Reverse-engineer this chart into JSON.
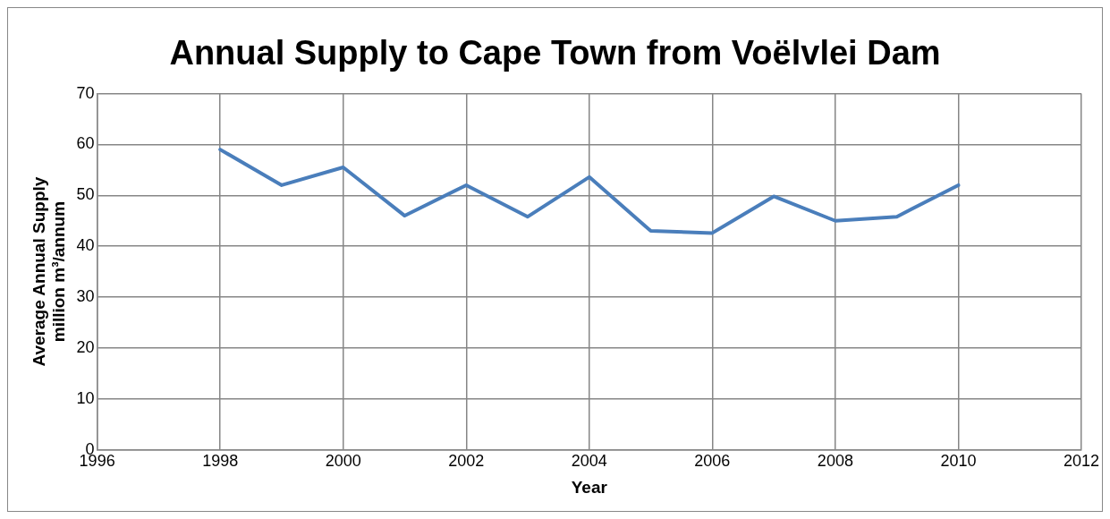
{
  "chart_data": {
    "type": "line",
    "title": "Annual Supply to Cape Town from Voëlvlei Dam",
    "xlabel": "Year",
    "ylabel": "Average Annual Supply\nmillion m³/annum",
    "x": [
      1998,
      1999,
      2000,
      2001,
      2002,
      2003,
      2004,
      2005,
      2006,
      2007,
      2008,
      2009,
      2010
    ],
    "series": [
      {
        "color": "#4a7ebb",
        "values": [
          59,
          52,
          55.5,
          46,
          52,
          45.8,
          53.6,
          43,
          42.6,
          49.8,
          45,
          45.8,
          52
        ]
      }
    ],
    "xlim": [
      1996,
      2012
    ],
    "xticks": [
      1996,
      1998,
      2000,
      2002,
      2004,
      2006,
      2008,
      2010,
      2012
    ],
    "ylim": [
      0,
      70
    ],
    "yticks": [
      0,
      10,
      20,
      30,
      40,
      50,
      60,
      70
    ],
    "grid": true,
    "legend": false,
    "marker": "none",
    "line_style": "solid"
  }
}
